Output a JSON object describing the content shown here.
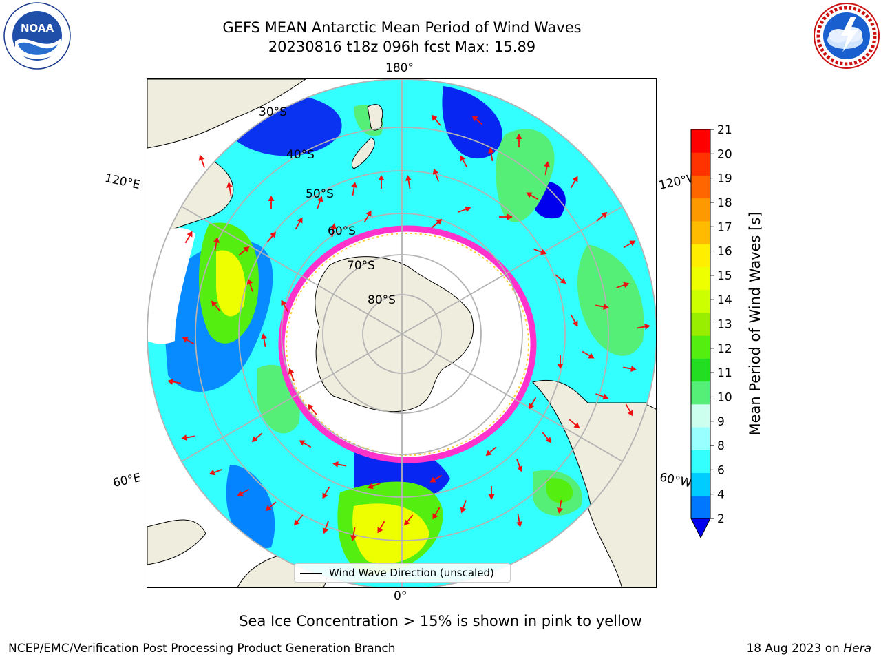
{
  "title": {
    "line1": "GEFS MEAN Antarctic Mean Period of Wind Waves",
    "line2": "20230816 t18z 096h fcst   Max: 15.89"
  },
  "logos": {
    "noaa": {
      "text": "NOAA",
      "ring_text": "NATIONAL OCEANIC AND ATMOSPHERIC ADMINISTRATION · U.S. DEPARTMENT OF COMMERCE"
    },
    "nws": {
      "ring_text": "NATIONAL WEATHER SERVICE"
    }
  },
  "map": {
    "projection": "South Polar Stereographic",
    "lon_labels": {
      "top": "180°",
      "bottom": "0°",
      "left_upper": "120°E",
      "left_lower": "60°E",
      "right_upper": "120°W",
      "right_lower": "60°W"
    },
    "lat_labels": [
      "30°S",
      "40°S",
      "50°S",
      "60°S",
      "70°S",
      "80°S"
    ],
    "colors": {
      "land": "#efedde",
      "ice_edge_outer": "#ff33cc",
      "ice_edge_inner": "#ffcc33",
      "arrow": "#ee1111",
      "grid": "#b3b3b3"
    }
  },
  "legend": {
    "label": "Wind Wave Direction (unscaled)"
  },
  "colorbar": {
    "label": "Mean Period of Wind Waves [s]",
    "ticks": [
      "2",
      "4",
      "6",
      "8",
      "9",
      "10",
      "11",
      "12",
      "13",
      "14",
      "15",
      "16",
      "17",
      "18",
      "19",
      "20",
      "21"
    ],
    "colors": [
      "#0077ff",
      "#00ccff",
      "#33ffff",
      "#99ffff",
      "#ccffee",
      "#55ee77",
      "#22dd22",
      "#55ee11",
      "#99ee00",
      "#ccff00",
      "#eeff00",
      "#ffee00",
      "#ffbb00",
      "#ff9900",
      "#ff6600",
      "#ff3300",
      "#ff0000"
    ],
    "under_color": "#0000ee"
  },
  "footnote": "Sea Ice Concentration > 15% is shown in pink to yellow",
  "credit": "NCEP/EMC/Verification Post Processing Product Generation Branch",
  "date_prefix": "18 Aug 2023 on ",
  "date_machine": "Hera"
}
